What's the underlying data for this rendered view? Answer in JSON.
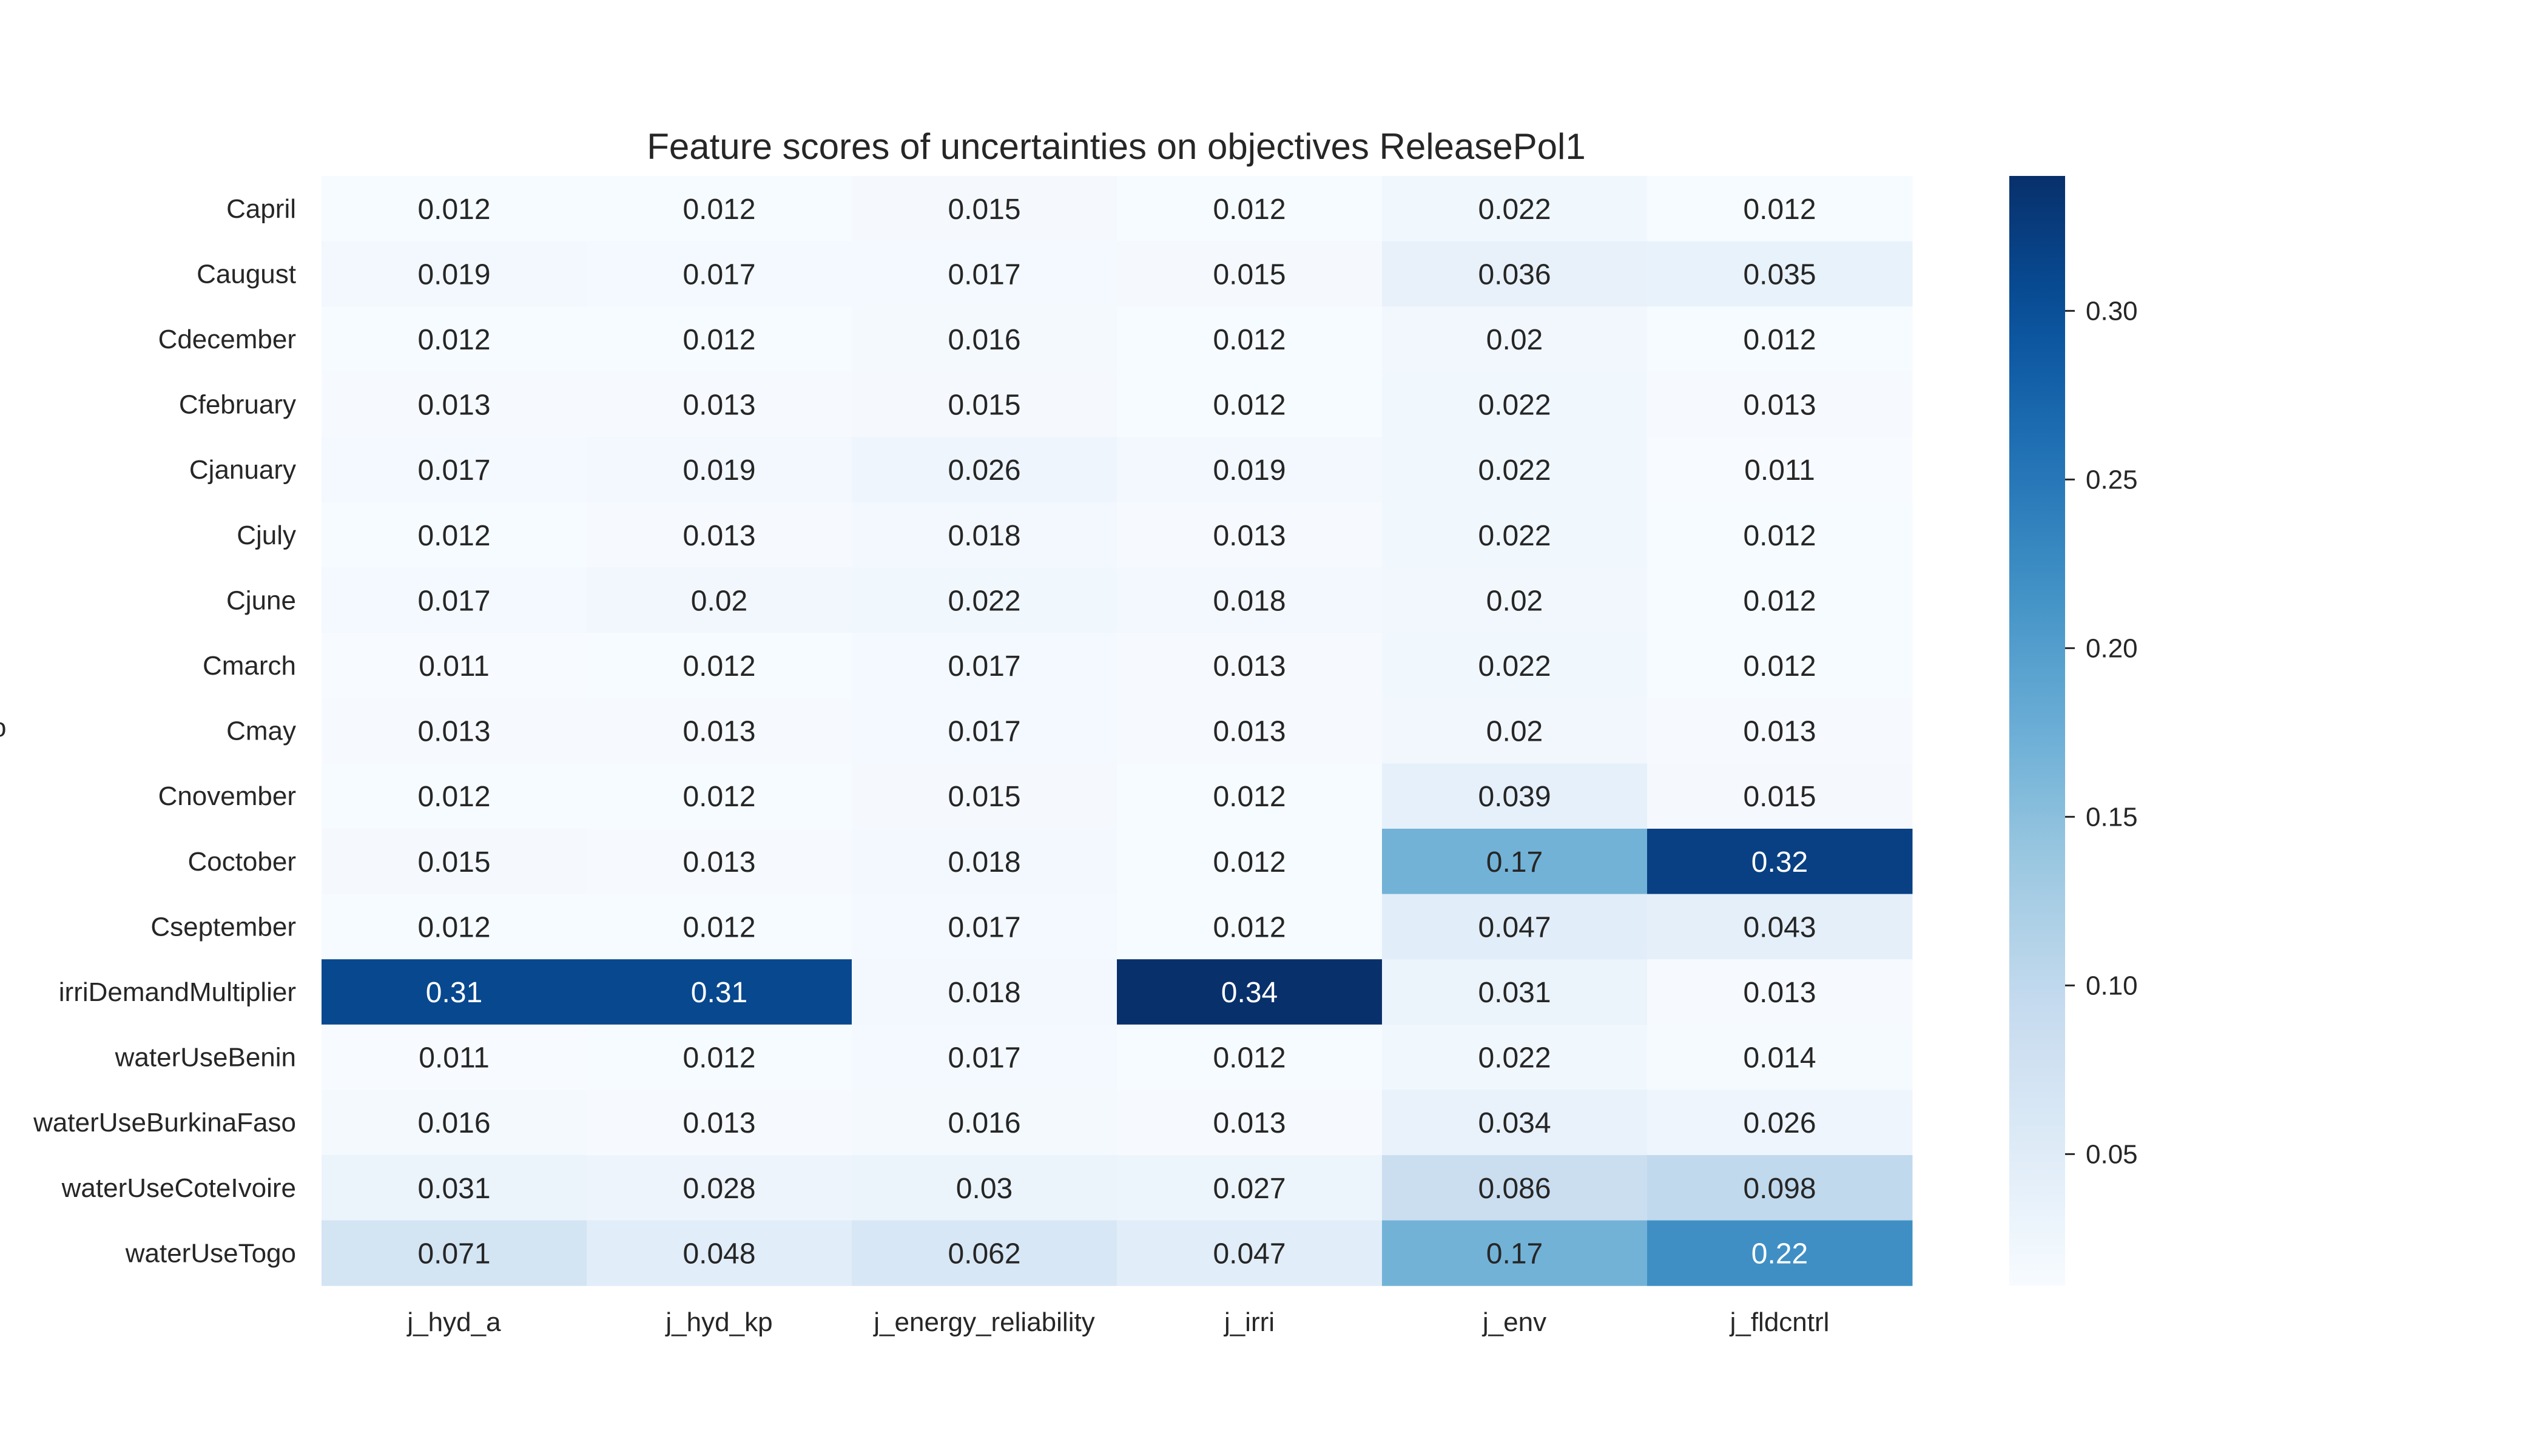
{
  "chart_data": {
    "type": "heatmap",
    "title": "Feature scores of uncertainties on objectives ReleasePol1",
    "rows": [
      "Capril",
      "Caugust",
      "Cdecember",
      "Cfebruary",
      "Cjanuary",
      "Cjuly",
      "Cjune",
      "Cmarch",
      "Cmay",
      "Cnovember",
      "Coctober",
      "Cseptember",
      "irriDemandMultiplier",
      "waterUseBenin",
      "waterUseBurkinaFaso",
      "waterUseCoteIvoire",
      "waterUseTogo"
    ],
    "columns": [
      "j_hyd_a",
      "j_hyd_kp",
      "j_energy_reliability",
      "j_irri",
      "j_env",
      "j_fldcntrl"
    ],
    "values": [
      [
        0.012,
        0.012,
        0.015,
        0.012,
        0.022,
        0.012
      ],
      [
        0.019,
        0.017,
        0.017,
        0.015,
        0.036,
        0.035
      ],
      [
        0.012,
        0.012,
        0.016,
        0.012,
        0.02,
        0.012
      ],
      [
        0.013,
        0.013,
        0.015,
        0.012,
        0.022,
        0.013
      ],
      [
        0.017,
        0.019,
        0.026,
        0.019,
        0.022,
        0.011
      ],
      [
        0.012,
        0.013,
        0.018,
        0.013,
        0.022,
        0.012
      ],
      [
        0.017,
        0.02,
        0.022,
        0.018,
        0.02,
        0.012
      ],
      [
        0.011,
        0.012,
        0.017,
        0.013,
        0.022,
        0.012
      ],
      [
        0.013,
        0.013,
        0.017,
        0.013,
        0.02,
        0.013
      ],
      [
        0.012,
        0.012,
        0.015,
        0.012,
        0.039,
        0.015
      ],
      [
        0.015,
        0.013,
        0.018,
        0.012,
        0.17,
        0.32
      ],
      [
        0.012,
        0.012,
        0.017,
        0.012,
        0.047,
        0.043
      ],
      [
        0.31,
        0.31,
        0.018,
        0.34,
        0.031,
        0.013
      ],
      [
        0.011,
        0.012,
        0.017,
        0.012,
        0.022,
        0.014
      ],
      [
        0.016,
        0.013,
        0.016,
        0.013,
        0.034,
        0.026
      ],
      [
        0.031,
        0.028,
        0.03,
        0.027,
        0.086,
        0.098
      ],
      [
        0.071,
        0.048,
        0.062,
        0.047,
        0.17,
        0.22
      ]
    ],
    "colormap": "Blues",
    "vmin": 0.011,
    "vmax": 0.34,
    "colorbar_ticks": [
      0.05,
      0.1,
      0.15,
      0.2,
      0.25,
      0.3
    ],
    "colorbar_tick_labels": [
      "0.05",
      "0.10",
      "0.15",
      "0.20",
      "0.25",
      "0.30"
    ],
    "stray_label": "o"
  }
}
